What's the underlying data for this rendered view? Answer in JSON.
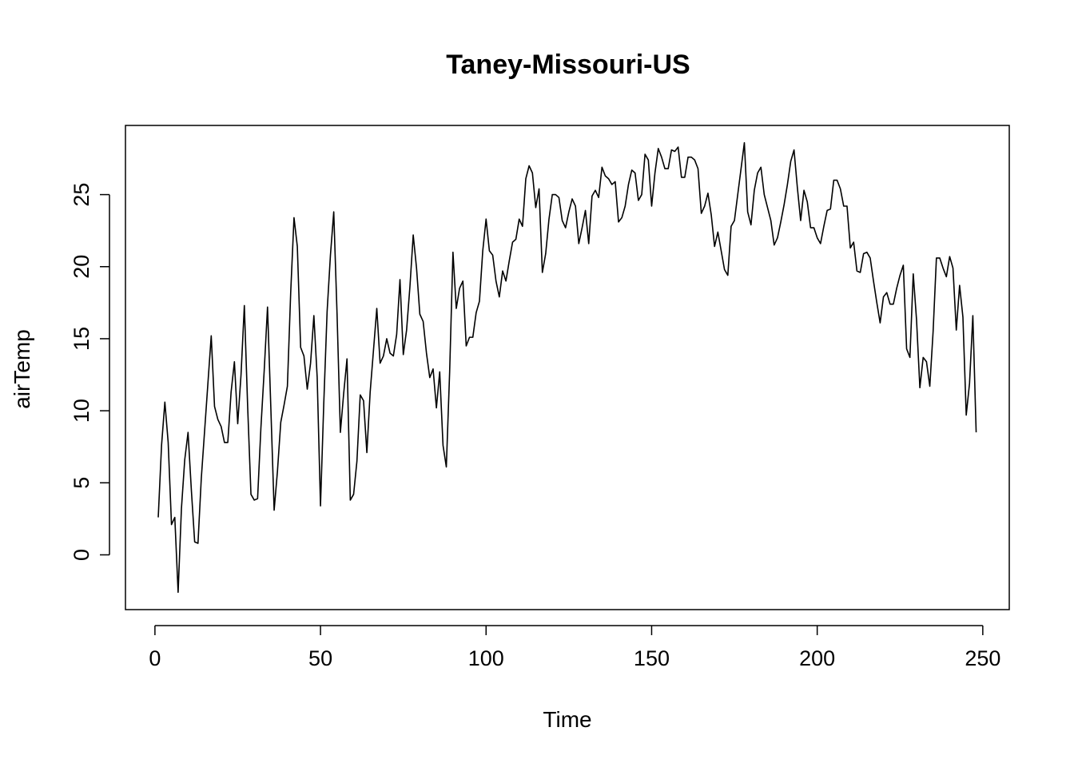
{
  "chart_data": {
    "type": "line",
    "title": "Taney-Missouri-US",
    "xlabel": "Time",
    "ylabel": "airTemp",
    "xlim": [
      -8.9,
      258
    ],
    "ylim": [
      -3.8,
      29.8
    ],
    "xticks": [
      0,
      50,
      100,
      150,
      200,
      250
    ],
    "yticks": [
      0,
      5,
      10,
      15,
      20,
      25
    ],
    "grid": false,
    "line_color": "#000000",
    "series": [
      {
        "x": [
          1,
          2,
          3,
          4,
          5,
          6,
          7,
          8,
          9,
          10,
          11,
          12,
          13,
          14,
          15,
          16,
          17,
          18,
          19,
          20,
          21,
          22,
          23,
          24,
          25,
          26,
          27,
          28,
          29,
          30,
          31,
          32,
          33,
          34,
          35,
          36,
          37,
          38,
          39,
          40,
          41,
          42,
          43,
          44,
          45,
          46,
          47,
          48,
          49,
          50,
          51,
          52,
          53,
          54,
          55,
          56,
          57,
          58,
          59,
          60,
          61,
          62,
          63,
          64,
          65,
          66,
          67,
          68,
          69,
          70,
          71,
          72,
          73,
          74,
          75,
          76,
          77,
          78,
          79,
          80,
          81,
          82,
          83,
          84,
          85,
          86,
          87,
          88,
          89,
          90,
          91,
          92,
          93,
          94,
          95,
          96,
          97,
          98,
          99,
          100,
          101,
          102,
          103,
          104,
          105,
          106,
          107,
          108,
          109,
          110,
          111,
          112,
          113,
          114,
          115,
          116,
          117,
          118,
          119,
          120,
          121,
          122,
          123,
          124,
          125,
          126,
          127,
          128,
          129,
          130,
          131,
          132,
          133,
          134,
          135,
          136,
          137,
          138,
          139,
          140,
          141,
          142,
          143,
          144,
          145,
          146,
          147,
          148,
          149,
          150,
          151,
          152,
          153,
          154,
          155,
          156,
          157,
          158,
          159,
          160,
          161,
          162,
          163,
          164,
          165,
          166,
          167,
          168,
          169,
          170,
          171,
          172,
          173,
          174,
          175,
          176,
          177,
          178,
          179,
          180,
          181,
          182,
          183,
          184,
          185,
          186,
          187,
          188,
          189,
          190,
          191,
          192,
          193,
          194,
          195,
          196,
          197,
          198,
          199,
          200,
          201,
          202,
          203,
          204,
          205,
          206,
          207,
          208,
          209,
          210,
          211,
          212,
          213,
          214,
          215,
          216,
          217,
          218,
          219,
          220,
          221,
          222,
          223,
          224,
          225,
          226,
          227,
          228,
          229,
          230,
          231,
          232,
          233,
          234,
          235,
          236,
          237,
          238,
          239,
          240,
          241,
          242,
          243,
          244,
          245,
          246,
          247,
          248
        ],
        "values": [
          2.6,
          7.6,
          10.6,
          7.8,
          2.1,
          2.6,
          -2.6,
          3.2,
          6.6,
          8.5,
          4.5,
          0.9,
          0.8,
          5.3,
          8.6,
          11.9,
          15.2,
          10.3,
          9.4,
          8.9,
          7.8,
          7.8,
          11.3,
          13.4,
          9.1,
          12.5,
          17.3,
          10.3,
          4.2,
          3.8,
          3.9,
          8.8,
          12.8,
          17.2,
          10.2,
          3.1,
          5.8,
          9.2,
          10.4,
          11.7,
          18.2,
          23.4,
          21.4,
          14.4,
          13.8,
          11.5,
          13.3,
          16.6,
          12.3,
          3.4,
          10.6,
          16.9,
          20.8,
          23.8,
          16.7,
          8.5,
          11.2,
          13.6,
          3.8,
          4.2,
          6.5,
          11.1,
          10.7,
          7.1,
          11.3,
          14.2,
          17.1,
          13.3,
          13.8,
          15.0,
          14.0,
          13.8,
          15.3,
          19.1,
          13.9,
          15.6,
          18.6,
          22.2,
          19.9,
          16.7,
          16.2,
          14.0,
          12.3,
          12.9,
          10.2,
          12.7,
          7.6,
          6.1,
          12.7,
          21.0,
          17.1,
          18.5,
          19.0,
          14.5,
          15.1,
          15.1,
          16.8,
          17.6,
          21.1,
          23.3,
          21.1,
          20.8,
          19.0,
          17.9,
          19.7,
          19.0,
          20.4,
          21.7,
          21.9,
          23.3,
          22.8,
          26.1,
          27.0,
          26.5,
          24.1,
          25.4,
          19.6,
          20.9,
          23.3,
          25.0,
          25.0,
          24.8,
          23.2,
          22.7,
          23.8,
          24.7,
          24.2,
          21.6,
          22.7,
          23.9,
          21.6,
          24.9,
          25.3,
          24.8,
          26.9,
          26.3,
          26.1,
          25.7,
          25.9,
          23.1,
          23.4,
          24.2,
          25.7,
          26.7,
          26.5,
          24.6,
          25.0,
          27.8,
          27.4,
          24.2,
          26.5,
          28.2,
          27.6,
          26.8,
          26.8,
          28.1,
          28.0,
          28.3,
          26.2,
          26.2,
          27.6,
          27.6,
          27.4,
          26.8,
          23.7,
          24.2,
          25.1,
          23.6,
          21.4,
          22.4,
          21.1,
          19.8,
          19.4,
          22.8,
          23.2,
          25.0,
          26.8,
          28.6,
          23.8,
          22.9,
          25.3,
          26.5,
          26.9,
          25.0,
          24.1,
          23.2,
          21.5,
          22.0,
          23.1,
          24.3,
          25.7,
          27.3,
          28.1,
          25.5,
          23.2,
          25.3,
          24.5,
          22.7,
          22.7,
          22.0,
          21.6,
          22.8,
          23.9,
          24.0,
          26.0,
          26.0,
          25.4,
          24.2,
          24.2,
          21.3,
          21.7,
          19.7,
          19.6,
          20.9,
          21.0,
          20.6,
          19.0,
          17.5,
          16.1,
          17.9,
          18.2,
          17.4,
          17.4,
          18.5,
          19.4,
          20.1,
          14.3,
          13.7,
          19.5,
          16.3,
          11.6,
          13.7,
          13.4,
          11.7,
          15.5,
          20.6,
          20.6,
          19.9,
          19.3,
          20.7,
          19.9,
          15.6,
          18.7,
          16.5,
          9.7,
          11.9,
          16.6,
          8.5
        ]
      }
    ]
  }
}
